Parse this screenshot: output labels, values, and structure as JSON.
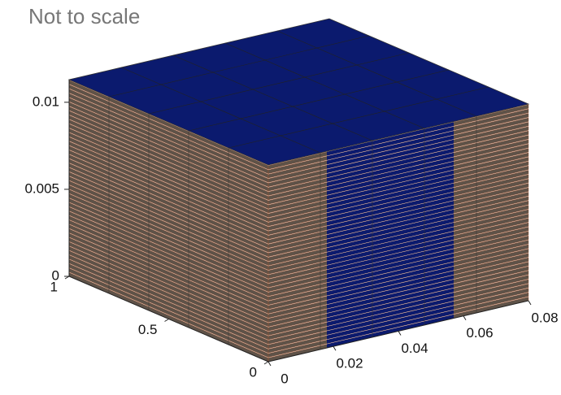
{
  "chart_data": {
    "type": "box3d",
    "annotation": "Not to scale",
    "xlim": [
      0,
      0.08
    ],
    "ylim": [
      0,
      1
    ],
    "zlim": [
      0,
      0.0113
    ],
    "xticks": [
      0,
      0.02,
      0.04,
      0.06,
      0.08
    ],
    "yticks": [
      0,
      0.5,
      1
    ],
    "zticks": [
      0,
      0.005,
      0.01
    ],
    "layers": 45,
    "inset_x": [
      0.018,
      0.057
    ],
    "top_color": "#0b1a6e",
    "layer_color": "#5e5248",
    "inset_color": "#0b1a6e",
    "grid": true
  }
}
